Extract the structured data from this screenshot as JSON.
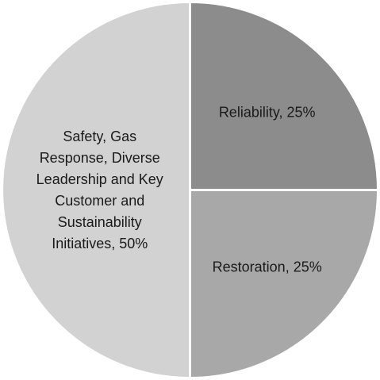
{
  "chart_data": {
    "type": "pie",
    "values": [
      25,
      25,
      50
    ],
    "value_labels": [
      "Reliability, 25%",
      "Restoration, 25%",
      "Safety, Gas Response, Diverse Leadership and Key Customer and Sustainability Initiatives, 50%"
    ],
    "colors": [
      "#8c8c8c",
      "#a8a8a8",
      "#d2d2d2"
    ]
  }
}
